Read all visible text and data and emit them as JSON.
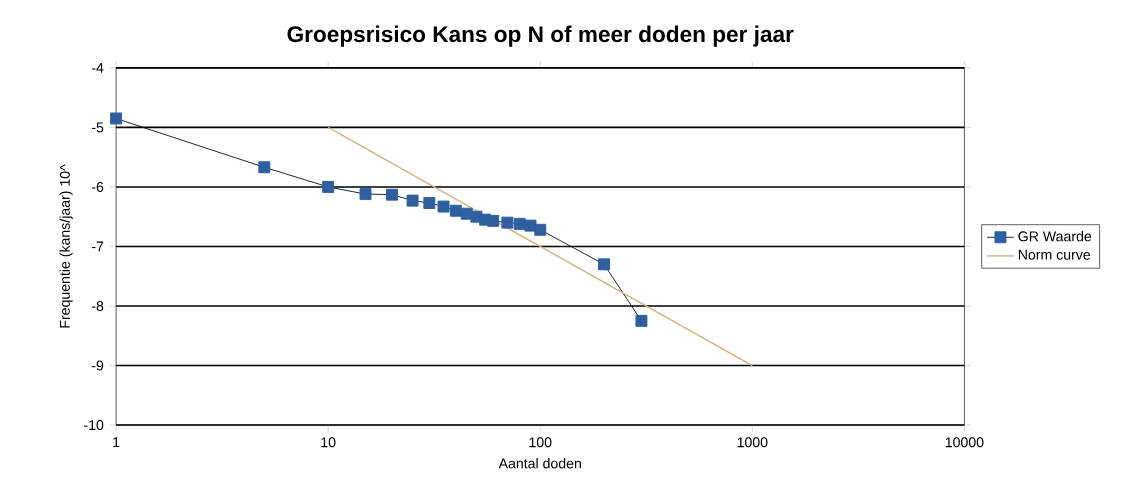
{
  "chart_data": {
    "type": "line",
    "title": "Groepsrisico Kans op N of meer doden per jaar",
    "xlabel": "Aantal doden",
    "ylabel": "Frequentie (kans/jaar) 10^",
    "log": "x",
    "xlim": [
      1,
      10000
    ],
    "xticks": [
      1,
      10,
      100,
      1000,
      10000
    ],
    "ylim": [
      -10,
      -4
    ],
    "yticks": [
      -10,
      -9,
      -8,
      -7,
      -6,
      -5,
      -4
    ],
    "grid": "y",
    "legend": "right",
    "series": [
      {
        "name": "GR Waarde",
        "color": "#2f5f9e",
        "marker": "square",
        "x": [
          1,
          5,
          10,
          15,
          20,
          25,
          30,
          35,
          40,
          45,
          50,
          55,
          60,
          70,
          80,
          90,
          100,
          200,
          300
        ],
        "values": [
          -4.85,
          -5.67,
          -6.0,
          -6.12,
          -6.13,
          -6.23,
          -6.27,
          -6.33,
          -6.4,
          -6.45,
          -6.5,
          -6.55,
          -6.57,
          -6.6,
          -6.62,
          -6.65,
          -6.72,
          -7.3,
          -8.25
        ]
      },
      {
        "name": "Norm curve",
        "color": "#d8b078",
        "marker": "none",
        "x": [
          10,
          1000
        ],
        "values": [
          -5,
          -9
        ]
      }
    ]
  }
}
